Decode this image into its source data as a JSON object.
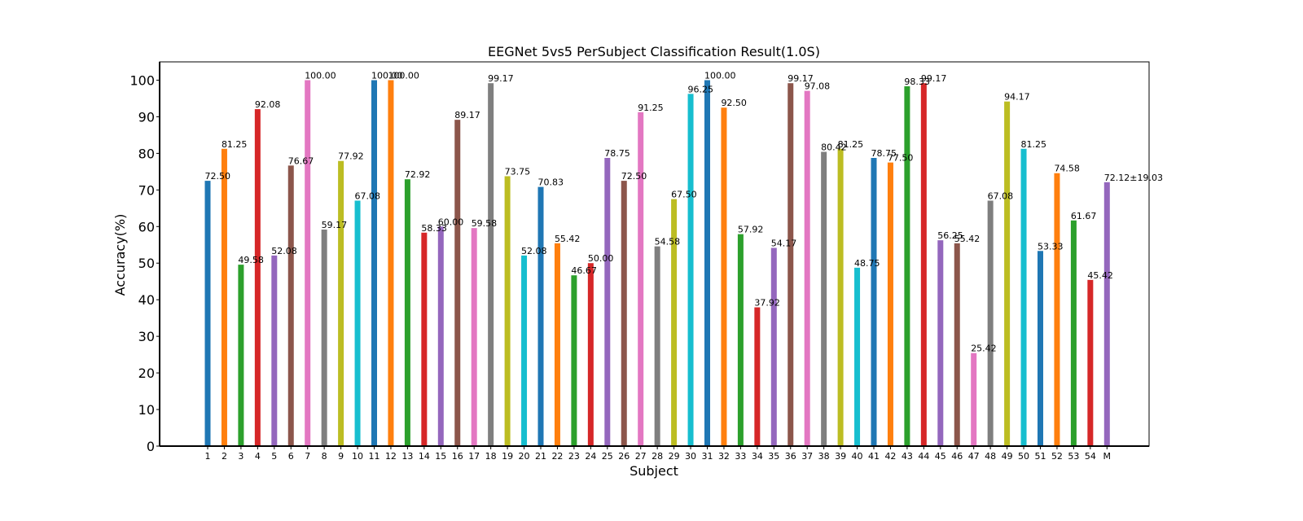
{
  "chart_data": {
    "type": "bar",
    "title": "EEGNet 5vs5 PerSubject Classification Result(1.0S)",
    "xlabel": "Subject",
    "ylabel": "Accuracy(%)",
    "ylim": [
      0,
      105
    ],
    "yticks": [
      0,
      10,
      20,
      30,
      40,
      50,
      60,
      70,
      80,
      90,
      100
    ],
    "grid": false,
    "legend": "none",
    "categories": [
      "1",
      "2",
      "3",
      "4",
      "5",
      "6",
      "7",
      "8",
      "9",
      "10",
      "11",
      "12",
      "13",
      "14",
      "15",
      "16",
      "17",
      "18",
      "19",
      "20",
      "21",
      "22",
      "23",
      "24",
      "25",
      "26",
      "27",
      "28",
      "29",
      "30",
      "31",
      "32",
      "33",
      "34",
      "35",
      "36",
      "37",
      "38",
      "39",
      "40",
      "41",
      "42",
      "43",
      "44",
      "45",
      "46",
      "47",
      "48",
      "49",
      "50",
      "51",
      "52",
      "53",
      "54",
      "M"
    ],
    "values": [
      72.5,
      81.25,
      49.58,
      92.08,
      52.08,
      76.67,
      100.0,
      59.17,
      77.92,
      67.08,
      100.0,
      100.0,
      72.92,
      58.33,
      60.0,
      89.17,
      59.58,
      99.17,
      73.75,
      52.08,
      70.83,
      55.42,
      46.67,
      50.0,
      78.75,
      72.5,
      91.25,
      54.58,
      67.5,
      96.25,
      100.0,
      92.5,
      57.92,
      37.92,
      54.17,
      99.17,
      97.08,
      80.42,
      81.25,
      48.75,
      78.75,
      77.5,
      98.33,
      99.17,
      56.25,
      55.42,
      25.42,
      67.08,
      94.17,
      81.25,
      53.33,
      74.58,
      61.67,
      45.42,
      72.12
    ],
    "data_labels": [
      "72.50",
      "81.25",
      "49.58",
      "92.08",
      "52.08",
      "76.67",
      "100.00",
      "59.17",
      "77.92",
      "67.08",
      "100.00",
      "100.00",
      "72.92",
      "58.33",
      "60.00",
      "89.17",
      "59.58",
      "99.17",
      "73.75",
      "52.08",
      "70.83",
      "55.42",
      "46.67",
      "50.00",
      "78.75",
      "72.50",
      "91.25",
      "54.58",
      "67.50",
      "96.25",
      "100.00",
      "92.50",
      "57.92",
      "37.92",
      "54.17",
      "99.17",
      "97.08",
      "80.42",
      "81.25",
      "48.75",
      "78.75",
      "77.50",
      "98.33",
      "99.17",
      "56.25",
      "55.42",
      "25.42",
      "67.08",
      "94.17",
      "81.25",
      "53.33",
      "74.58",
      "61.67",
      "45.42",
      "72.12±19.03"
    ],
    "colors": [
      "#1f77b4",
      "#ff7f0e",
      "#2ca02c",
      "#d62728",
      "#9467bd",
      "#8c564b",
      "#e377c2",
      "#7f7f7f",
      "#bcbd22",
      "#17becf"
    ],
    "mean_label_color": "#ff0000"
  }
}
